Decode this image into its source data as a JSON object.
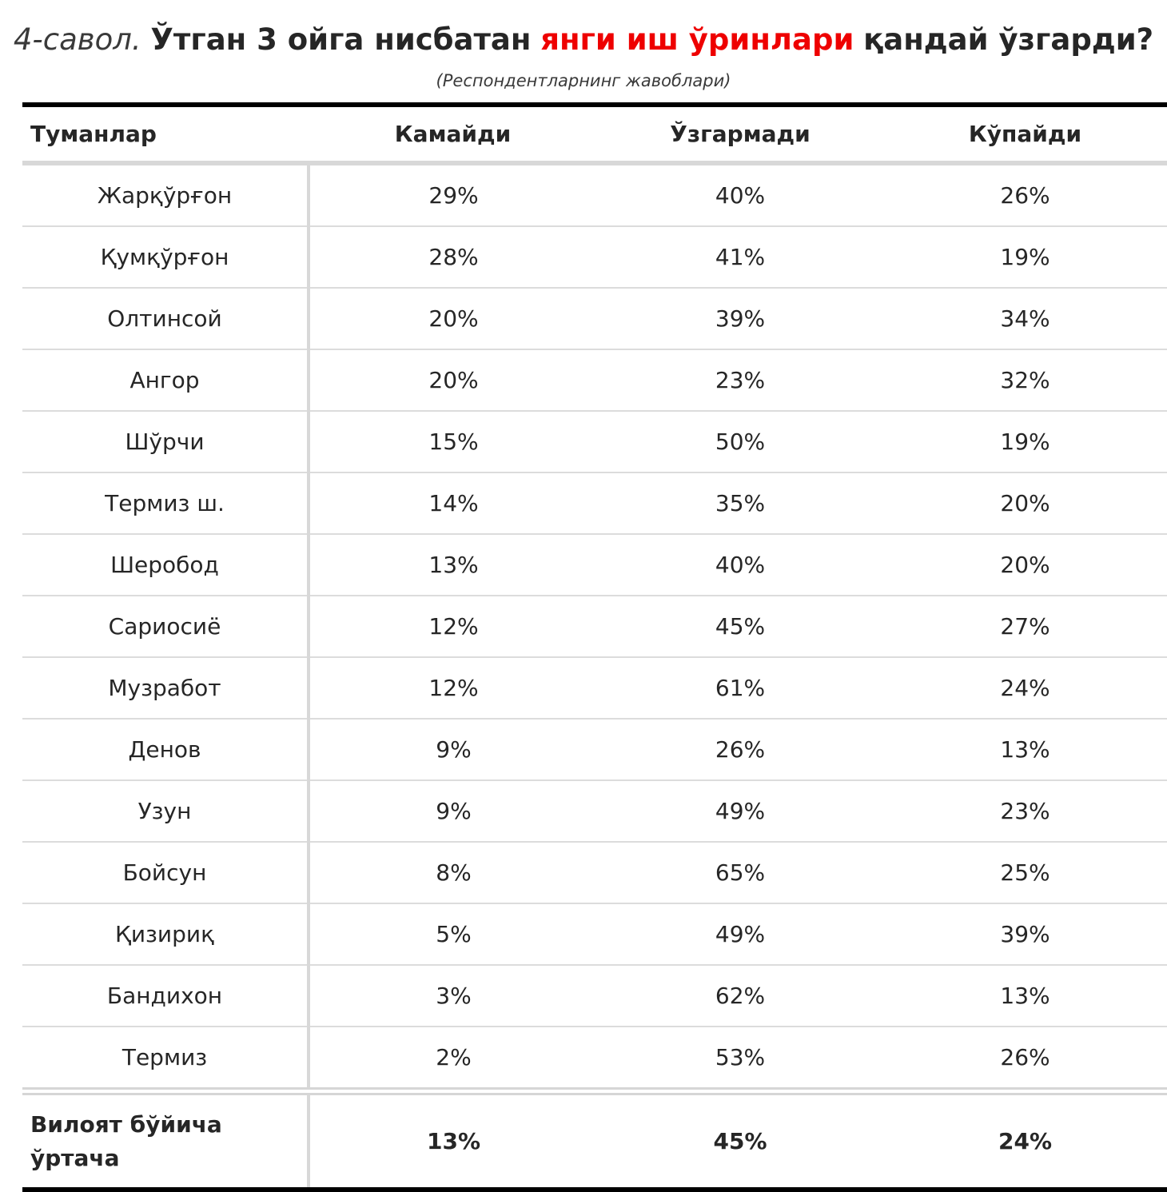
{
  "title": {
    "prefix": "4-савол.",
    "main": "Ўтган 3 ойга нисбатан",
    "highlight": "янги иш ўринлари",
    "end": "қандай ўзгарди?"
  },
  "subtitle": "(Респондентларнинг жавоблари)",
  "colors": {
    "highlight": "#ee0000",
    "text": "#262626",
    "rule_dark": "#000000",
    "rule_light": "#d8d8d8"
  },
  "chart_data": {
    "type": "table",
    "columns": [
      "Туманлар",
      "Камайди",
      "Ўзгармади",
      "Кўпайди"
    ],
    "rows": [
      {
        "name": "Жарқўрғон",
        "values": [
          "29%",
          "40%",
          "26%"
        ]
      },
      {
        "name": "Қумқўрғон",
        "values": [
          "28%",
          "41%",
          "19%"
        ]
      },
      {
        "name": "Олтинсой",
        "values": [
          "20%",
          "39%",
          "34%"
        ]
      },
      {
        "name": "Ангор",
        "values": [
          "20%",
          "23%",
          "32%"
        ]
      },
      {
        "name": "Шўрчи",
        "values": [
          "15%",
          "50%",
          "19%"
        ]
      },
      {
        "name": "Термиз ш.",
        "values": [
          "14%",
          "35%",
          "20%"
        ]
      },
      {
        "name": "Шеробод",
        "values": [
          "13%",
          "40%",
          "20%"
        ]
      },
      {
        "name": "Сариосиё",
        "values": [
          "12%",
          "45%",
          "27%"
        ]
      },
      {
        "name": "Музработ",
        "values": [
          "12%",
          "61%",
          "24%"
        ]
      },
      {
        "name": "Денов",
        "values": [
          "9%",
          "26%",
          "13%"
        ]
      },
      {
        "name": "Узун",
        "values": [
          "9%",
          "49%",
          "23%"
        ]
      },
      {
        "name": "Бойсун",
        "values": [
          "8%",
          "65%",
          "25%"
        ]
      },
      {
        "name": "Қизириқ",
        "values": [
          "5%",
          "49%",
          "39%"
        ]
      },
      {
        "name": "Бандихон",
        "values": [
          "3%",
          "62%",
          "13%"
        ]
      },
      {
        "name": "Термиз",
        "values": [
          "2%",
          "53%",
          "26%"
        ]
      }
    ],
    "footer": {
      "name_line1": "Вилоят бўйича",
      "name_line2": "ўртача",
      "values": [
        "13%",
        "45%",
        "24%"
      ]
    }
  }
}
